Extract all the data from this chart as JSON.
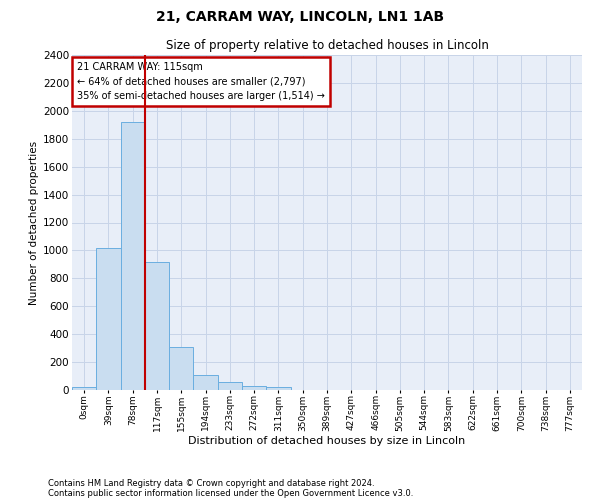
{
  "title_line1": "21, CARRAM WAY, LINCOLN, LN1 1AB",
  "title_line2": "Size of property relative to detached houses in Lincoln",
  "xlabel": "Distribution of detached houses by size in Lincoln",
  "ylabel": "Number of detached properties",
  "footer_line1": "Contains HM Land Registry data © Crown copyright and database right 2024.",
  "footer_line2": "Contains public sector information licensed under the Open Government Licence v3.0.",
  "bar_labels": [
    "0sqm",
    "39sqm",
    "78sqm",
    "117sqm",
    "155sqm",
    "194sqm",
    "233sqm",
    "272sqm",
    "311sqm",
    "350sqm",
    "389sqm",
    "427sqm",
    "466sqm",
    "505sqm",
    "544sqm",
    "583sqm",
    "622sqm",
    "661sqm",
    "700sqm",
    "738sqm",
    "777sqm"
  ],
  "bar_values": [
    20,
    1020,
    1920,
    920,
    310,
    110,
    55,
    30,
    20,
    0,
    0,
    0,
    0,
    0,
    0,
    0,
    0,
    0,
    0,
    0,
    0
  ],
  "bar_color": "#c9ddf0",
  "bar_edge_color": "#6aaee0",
  "ylim": [
    0,
    2400
  ],
  "yticks": [
    0,
    200,
    400,
    600,
    800,
    1000,
    1200,
    1400,
    1600,
    1800,
    2000,
    2200,
    2400
  ],
  "vline_color": "#c00000",
  "annotation_box_text_line1": "21 CARRAM WAY: 115sqm",
  "annotation_box_text_line2": "← 64% of detached houses are smaller (2,797)",
  "annotation_box_text_line3": "35% of semi-detached houses are larger (1,514) →",
  "annotation_box_edgecolor": "#c00000",
  "grid_color": "#c8d4e8",
  "background_color": "#e8eef8"
}
